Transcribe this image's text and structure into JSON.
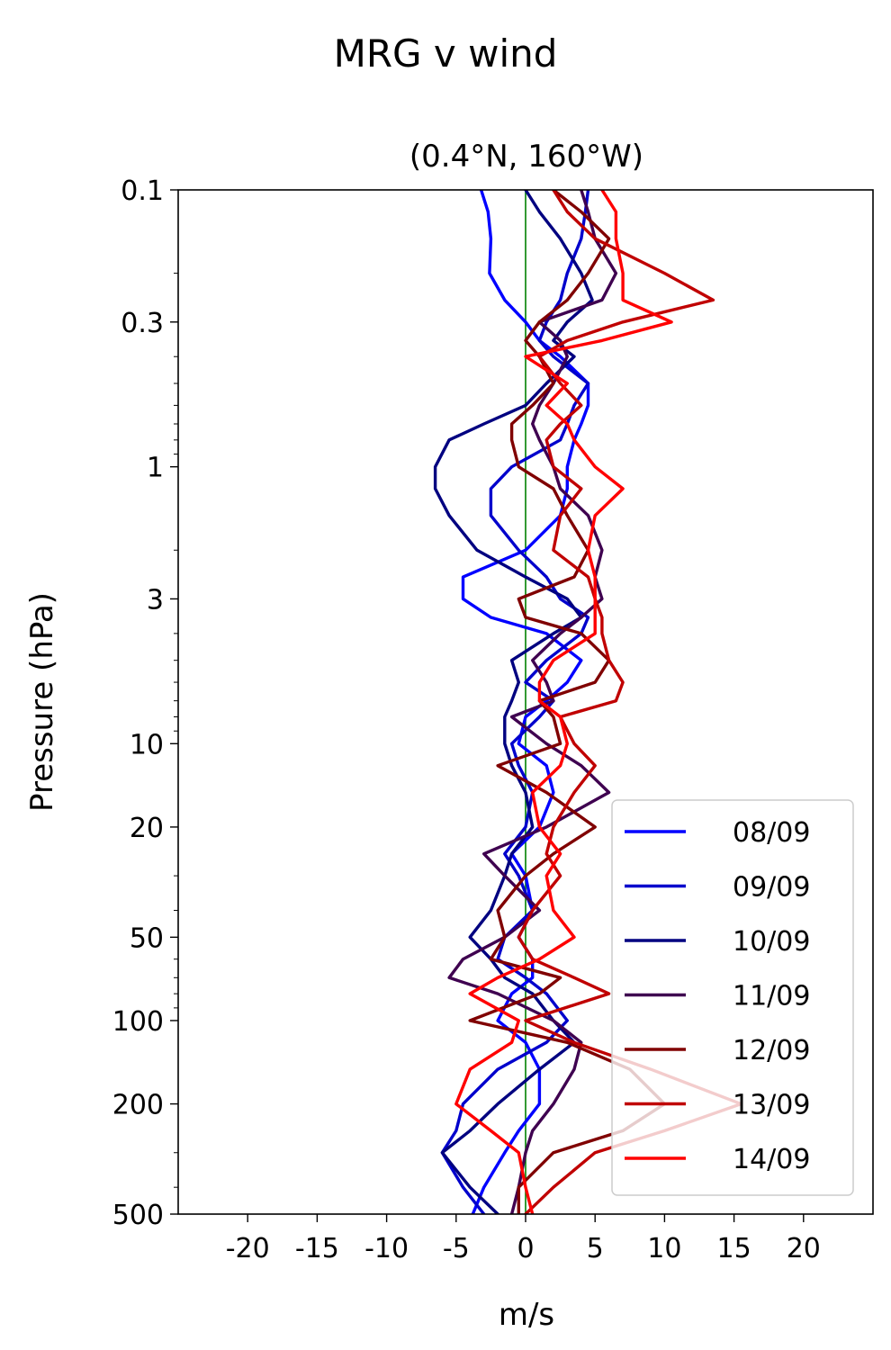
{
  "chart_data": {
    "type": "line",
    "suptitle": "MRG v wind",
    "title": "(0.4°N, 160°W)",
    "xlabel": "m/s",
    "ylabel": "Pressure (hPa)",
    "xlim": [
      -25,
      25
    ],
    "ylim": [
      500,
      0.1
    ],
    "yscale": "log",
    "x_ticks": [
      -20,
      -15,
      -10,
      -5,
      0,
      5,
      10,
      15,
      20
    ],
    "x_tick_labels": [
      "-20",
      "-15",
      "-10",
      "-5",
      "0",
      "5",
      "10",
      "15",
      "20"
    ],
    "y_ticks": [
      0.1,
      0.3,
      1,
      3,
      10,
      20,
      50,
      100,
      200,
      500
    ],
    "y_tick_labels": [
      "0.1",
      "0.3",
      "1",
      "3",
      "10",
      "20",
      "50",
      "100",
      "200",
      "500"
    ],
    "reference_line": {
      "x": 0,
      "color": "#008000"
    },
    "legend_position": "lower-right",
    "pressure_levels": [
      0.1,
      0.12,
      0.15,
      0.2,
      0.25,
      0.3,
      0.35,
      0.4,
      0.5,
      0.6,
      0.7,
      0.8,
      1.0,
      1.2,
      1.5,
      2.0,
      2.5,
      3.0,
      3.5,
      4.0,
      5.0,
      6.0,
      7.0,
      8.0,
      10,
      12,
      15,
      20,
      25,
      30,
      40,
      50,
      60,
      70,
      80,
      100,
      120,
      150,
      200,
      250,
      300,
      400,
      500
    ],
    "series": [
      {
        "name": "08/09",
        "color": "#0000ff",
        "values": [
          -3.2,
          -2.7,
          -2.5,
          -2.6,
          -1.5,
          0.0,
          1.0,
          2.5,
          4.5,
          4.5,
          4.0,
          3.5,
          3.0,
          3.0,
          2.5,
          0.0,
          -4.5,
          -4.5,
          -2.5,
          1.5,
          4.0,
          3.0,
          1.5,
          0.0,
          -0.5,
          1.5,
          2.0,
          1.0,
          -1.0,
          0.0,
          0.5,
          -0.5,
          0.5,
          0.5,
          -1.0,
          -2.0,
          0.0,
          1.0,
          1.0,
          -0.5,
          -1.5,
          -3.0,
          -3.8
        ]
      },
      {
        "name": "09/09",
        "color": "#0000cc",
        "values": [
          4.5,
          4.3,
          4.0,
          3.0,
          2.5,
          1.5,
          1.0,
          2.0,
          4.5,
          3.5,
          3.0,
          2.5,
          -1.0,
          -2.5,
          -2.5,
          -0.5,
          1.5,
          2.5,
          4.5,
          4.0,
          1.5,
          0.0,
          2.0,
          1.0,
          -1.0,
          -0.5,
          0.5,
          0.0,
          -1.5,
          -0.5,
          0.5,
          -1.5,
          -2.0,
          0.0,
          1.5,
          3.0,
          1.5,
          -2.0,
          -4.5,
          -5.0,
          -6.0,
          -4.5,
          -3.0
        ]
      },
      {
        "name": "10/09",
        "color": "#000080",
        "values": [
          0.0,
          1.0,
          2.5,
          4.0,
          4.8,
          3.0,
          2.0,
          3.5,
          1.5,
          0.0,
          -3.0,
          -5.5,
          -6.5,
          -6.5,
          -5.5,
          -3.5,
          0.0,
          3.0,
          4.0,
          2.0,
          -1.0,
          -0.5,
          -1.0,
          -1.5,
          -1.5,
          -1.0,
          0.0,
          0.5,
          -1.0,
          -1.5,
          -2.5,
          -4.0,
          -2.5,
          -1.5,
          0.5,
          2.0,
          3.5,
          1.0,
          -2.0,
          -4.0,
          -6.0,
          -4.0,
          -2.0
        ]
      },
      {
        "name": "11/09",
        "color": "#3f0050",
        "values": [
          4.0,
          4.5,
          5.0,
          6.5,
          5.5,
          1.0,
          2.5,
          3.0,
          2.0,
          1.0,
          0.5,
          1.0,
          2.0,
          2.5,
          4.5,
          5.5,
          5.0,
          5.5,
          4.0,
          2.5,
          0.5,
          1.5,
          2.0,
          -1.0,
          1.5,
          4.0,
          6.0,
          1.5,
          -3.0,
          -1.5,
          1.0,
          -1.5,
          -4.5,
          -5.5,
          -2.0,
          2.0,
          4.0,
          3.5,
          2.0,
          0.5,
          0.0,
          -0.5,
          -1.0
        ]
      },
      {
        "name": "12/09",
        "color": "#800000",
        "values": [
          2.0,
          4.0,
          6.0,
          4.5,
          3.0,
          1.0,
          0.0,
          1.0,
          2.0,
          0.5,
          -1.0,
          -1.0,
          -0.5,
          2.0,
          3.0,
          4.5,
          3.5,
          -0.5,
          0.0,
          4.0,
          6.0,
          5.0,
          1.0,
          2.0,
          2.5,
          -2.0,
          1.5,
          5.0,
          2.0,
          0.0,
          -2.0,
          -1.5,
          -2.5,
          2.5,
          1.0,
          -4.0,
          3.0,
          7.5,
          10.0,
          7.0,
          2.0,
          -0.5,
          -0.5
        ]
      },
      {
        "name": "13/09",
        "color": "#c00000",
        "values": [
          2.0,
          3.0,
          5.0,
          10.0,
          13.5,
          7.0,
          3.0,
          1.0,
          2.5,
          4.0,
          2.5,
          1.5,
          2.0,
          4.0,
          2.5,
          2.0,
          4.5,
          5.0,
          5.5,
          5.5,
          6.0,
          7.0,
          6.5,
          2.5,
          3.5,
          5.0,
          3.5,
          2.0,
          1.5,
          2.5,
          0.5,
          -0.5,
          0.5,
          3.5,
          6.0,
          0.0,
          3.5,
          9.0,
          15.5,
          10.0,
          5.0,
          2.0,
          0.0
        ]
      },
      {
        "name": "14/09",
        "color": "#ff0000",
        "values": [
          5.5,
          6.5,
          6.5,
          7.0,
          7.0,
          10.5,
          5.5,
          0.0,
          3.0,
          1.5,
          3.0,
          3.5,
          5.0,
          7.0,
          5.0,
          4.5,
          5.0,
          5.0,
          5.0,
          5.0,
          2.0,
          1.0,
          1.0,
          2.5,
          3.0,
          2.5,
          0.5,
          1.0,
          2.5,
          1.5,
          2.0,
          3.5,
          1.0,
          -2.0,
          -4.0,
          -0.5,
          -1.0,
          -4.0,
          -5.0,
          -2.5,
          -0.5,
          0.0,
          0.5
        ]
      }
    ]
  }
}
